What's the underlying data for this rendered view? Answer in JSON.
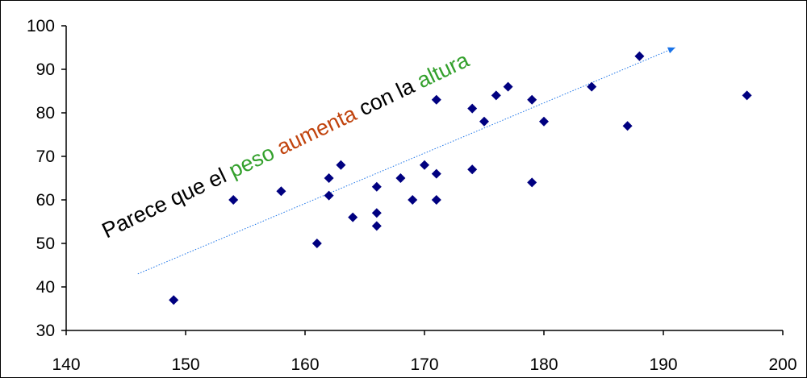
{
  "chart_data": {
    "type": "scatter",
    "title": "",
    "xlabel": "",
    "ylabel": "",
    "xlim": [
      140,
      200
    ],
    "ylim": [
      30,
      100
    ],
    "xticks": [
      140,
      150,
      160,
      170,
      180,
      190,
      200
    ],
    "yticks": [
      30,
      40,
      50,
      60,
      70,
      80,
      90,
      100
    ],
    "grid": false,
    "legend": false,
    "marker": "diamond",
    "marker_color": "#000080",
    "series": [
      {
        "points": [
          [
            149,
            37
          ],
          [
            154,
            60
          ],
          [
            158,
            62
          ],
          [
            161,
            50
          ],
          [
            162,
            65
          ],
          [
            162,
            61
          ],
          [
            163,
            68
          ],
          [
            164,
            56
          ],
          [
            166,
            63
          ],
          [
            166,
            57
          ],
          [
            166,
            54
          ],
          [
            168,
            65
          ],
          [
            169,
            60
          ],
          [
            170,
            68
          ],
          [
            171,
            83
          ],
          [
            171,
            66
          ],
          [
            171,
            60
          ],
          [
            174,
            81
          ],
          [
            174,
            67
          ],
          [
            175,
            78
          ],
          [
            176,
            84
          ],
          [
            177,
            86
          ],
          [
            179,
            83
          ],
          [
            179,
            64
          ],
          [
            180,
            78
          ],
          [
            184,
            86
          ],
          [
            187,
            77
          ],
          [
            188,
            93
          ],
          [
            197,
            84
          ]
        ]
      }
    ],
    "trend_arrow": {
      "from": [
        146,
        43
      ],
      "to": [
        191,
        95
      ],
      "color": "#1a73e8",
      "style": "dotted"
    },
    "annotation": {
      "segments": [
        {
          "text": "Parece que el ",
          "color": "#000000"
        },
        {
          "text": "peso",
          "color": "#33a02c"
        },
        {
          "text": " ",
          "color": "#000000"
        },
        {
          "text": "aumenta",
          "color": "#c1440e"
        },
        {
          "text": " con la ",
          "color": "#000000"
        },
        {
          "text": "altura",
          "color": "#33a02c"
        }
      ]
    }
  }
}
